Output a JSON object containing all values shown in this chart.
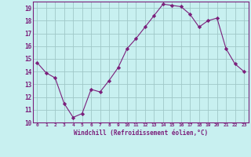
{
  "x": [
    0,
    1,
    2,
    3,
    4,
    5,
    6,
    7,
    8,
    9,
    10,
    11,
    12,
    13,
    14,
    15,
    16,
    17,
    18,
    19,
    20,
    21,
    22,
    23
  ],
  "y": [
    14.7,
    13.9,
    13.5,
    11.5,
    10.4,
    10.7,
    12.6,
    12.4,
    13.3,
    14.3,
    15.8,
    16.6,
    17.5,
    18.4,
    19.3,
    19.2,
    19.1,
    18.5,
    17.5,
    18.0,
    18.2,
    15.8,
    14.6,
    14.0
  ],
  "line_color": "#7b1f7b",
  "marker": "D",
  "marker_size": 2.2,
  "bg_color": "#c8f0f0",
  "grid_color": "#a0c8c8",
  "xlabel": "Windchill (Refroidissement éolien,°C)",
  "xlabel_color": "#7b1f7b",
  "tick_color": "#7b1f7b",
  "ylim": [
    10,
    19.5
  ],
  "xlim": [
    -0.5,
    23.5
  ],
  "yticks": [
    10,
    11,
    12,
    13,
    14,
    15,
    16,
    17,
    18,
    19
  ],
  "xticks": [
    0,
    1,
    2,
    3,
    4,
    5,
    6,
    7,
    8,
    9,
    10,
    11,
    12,
    13,
    14,
    15,
    16,
    17,
    18,
    19,
    20,
    21,
    22,
    23
  ],
  "xtick_labels": [
    "0",
    "1",
    "2",
    "3",
    "4",
    "5",
    "6",
    "7",
    "8",
    "9",
    "10",
    "11",
    "12",
    "13",
    "14",
    "15",
    "16",
    "17",
    "18",
    "19",
    "20",
    "21",
    "22",
    "23"
  ],
  "spine_color": "#7b1f7b",
  "title": ""
}
